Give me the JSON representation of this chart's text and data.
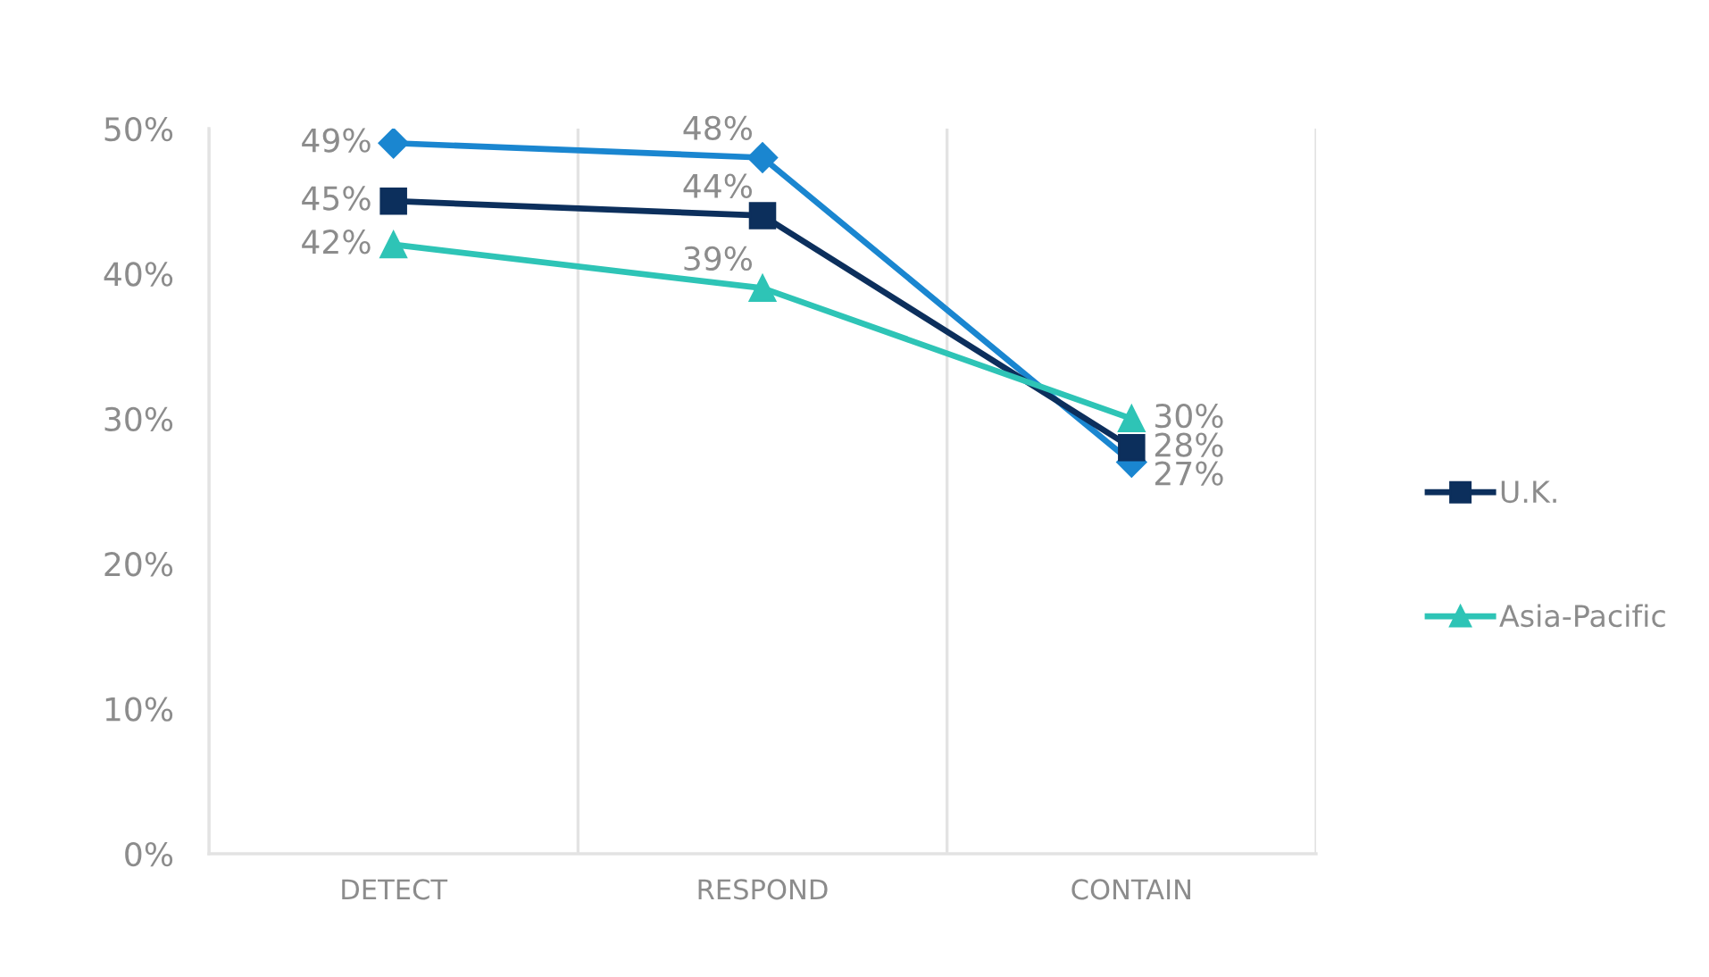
{
  "chart_data": {
    "type": "line",
    "categories": [
      "DETECT",
      "RESPOND",
      "CONTAIN"
    ],
    "series": [
      {
        "color": "#1a86d0",
        "marker": "diamond",
        "values": [
          49,
          48,
          27
        ],
        "value_labels": [
          "49%",
          "48%",
          "27%"
        ]
      },
      {
        "name": "U.K.",
        "color": "#0c2f5c",
        "marker": "square",
        "values": [
          45,
          44,
          28
        ],
        "value_labels": [
          "45%",
          "44%",
          "28%"
        ]
      },
      {
        "name": "Asia-Pacific",
        "color": "#2ec4b6",
        "marker": "triangle",
        "values": [
          42,
          39,
          30
        ],
        "value_labels": [
          "42%",
          "39%",
          "30%"
        ]
      }
    ],
    "ylim": [
      0,
      50
    ],
    "yticks": [
      {
        "value": 0,
        "label": "0%"
      },
      {
        "value": 10,
        "label": "10%"
      },
      {
        "value": 20,
        "label": "20%"
      },
      {
        "value": 30,
        "label": "30%"
      },
      {
        "value": 40,
        "label": "40%"
      },
      {
        "value": 50,
        "label": "50%"
      }
    ],
    "grid": "x",
    "legend": "right",
    "line_style": "solid"
  }
}
